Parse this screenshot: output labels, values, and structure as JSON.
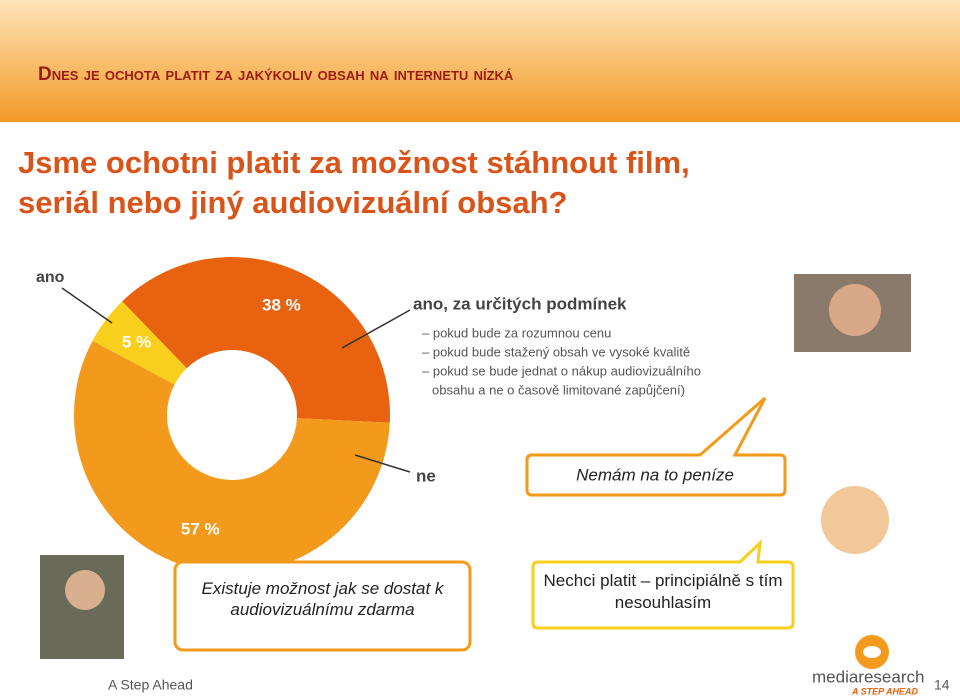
{
  "header": {
    "title": "Dnes je ochota platit za jakýkoliv obsah na internetu nízká"
  },
  "chart_data": {
    "type": "donut",
    "title": [
      "Jsme ochotni platit za možnost stáhnout film,",
      "seriál nebo jiný audiovizuální obsah?"
    ],
    "categories": [
      "ano",
      "ano, za určitých podmínek",
      "ne"
    ],
    "values": [
      5,
      38,
      57
    ],
    "value_labels": [
      "5 %",
      "38 %",
      "57 %"
    ],
    "colors": [
      "#f7cf1c",
      "#e8620f",
      "#f39a1c"
    ],
    "notes": [
      "– pokud bude za rozumnou cenu",
      "– pokud bude stažený obsah ve vysoké kvalitě",
      "– pokud se bude jednat o nákup audiovizuálního",
      "obsahu a ne o časově limitované zapůjčení)"
    ]
  },
  "quotes": [
    "Nemám na to peníze",
    "Existuje možnost jak se dostat k audiovizuálnímu zdarma",
    "Nechci platit – principiálně s tím nesouhlasím"
  ],
  "footer": {
    "left": "A Step Ahead",
    "logo": "mediaresearch",
    "logo_tagline": "A STEP AHEAD",
    "page": "14"
  }
}
